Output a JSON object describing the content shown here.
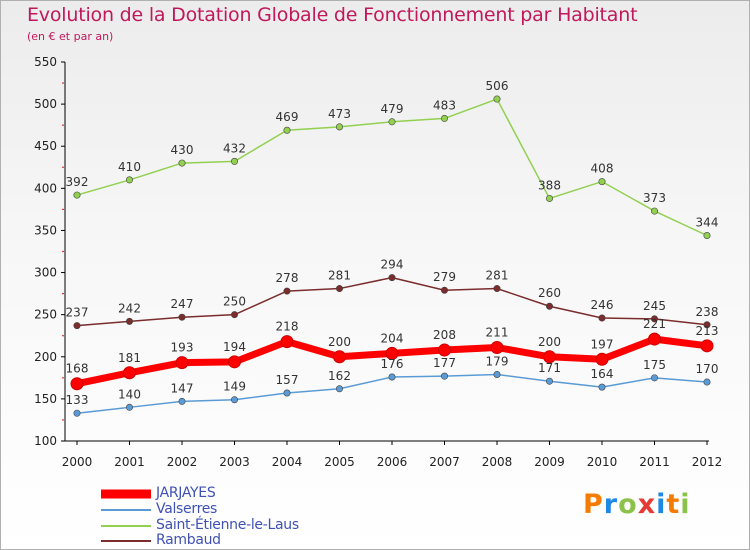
{
  "title": "Evolution de la Dotation Globale de Fonctionnement par Habitant",
  "subtitle": "(en € et par an)",
  "logo": {
    "text": "Proxiti",
    "letters": [
      {
        "ch": "P",
        "color": "#f57c00"
      },
      {
        "ch": "r",
        "color": "#1e88e5"
      },
      {
        "ch": "o",
        "color": "#8bc34a"
      },
      {
        "ch": "x",
        "color": "#e53935"
      },
      {
        "ch": "i",
        "color": "#1e88e5"
      },
      {
        "ch": "t",
        "color": "#f57c00"
      },
      {
        "ch": "i",
        "color": "#8bc34a"
      }
    ]
  },
  "chart_data": {
    "type": "line",
    "title": "Evolution de la Dotation Globale de Fonctionnement par Habitant",
    "subtitle": "(en € et par an)",
    "xlabel": "",
    "ylabel": "",
    "x": [
      "2000",
      "2001",
      "2002",
      "2003",
      "2004",
      "2005",
      "2006",
      "2007",
      "2008",
      "2009",
      "2010",
      "2011",
      "2012"
    ],
    "ylim": [
      100,
      550
    ],
    "yticks": [
      100,
      150,
      200,
      250,
      300,
      350,
      400,
      450,
      500,
      550
    ],
    "grid": false,
    "legend_position": "bottom-left",
    "series": [
      {
        "name": "JARJAYES",
        "color": "#ff0000",
        "values": [
          168,
          181,
          193,
          194,
          218,
          200,
          204,
          208,
          211,
          200,
          197,
          221,
          213
        ]
      },
      {
        "name": "Valserres",
        "color": "#5b9bd5",
        "values": [
          133,
          140,
          147,
          149,
          157,
          162,
          176,
          177,
          179,
          171,
          164,
          175,
          170
        ]
      },
      {
        "name": "Saint-Étienne-le-Laus",
        "color": "#92d050",
        "values": [
          392,
          410,
          430,
          432,
          469,
          473,
          479,
          483,
          506,
          388,
          408,
          373,
          344
        ]
      },
      {
        "name": "Rambaud",
        "color": "#7b2c2c",
        "values": [
          237,
          242,
          247,
          250,
          278,
          281,
          294,
          279,
          281,
          260,
          246,
          245,
          238
        ]
      }
    ]
  }
}
